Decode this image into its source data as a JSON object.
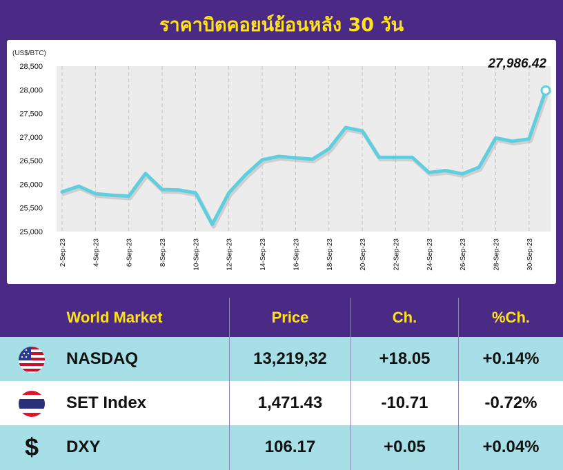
{
  "title": "ราคาบิตคอยน์ย้อนหลัง 30 วัน",
  "chart_data": {
    "type": "line",
    "unit_label": "(US$/BTC)",
    "ylim": [
      25000,
      28500
    ],
    "yticks": [
      "25,000",
      "25,500",
      "26,000",
      "26,500",
      "27,000",
      "27,500",
      "28,000",
      "28,500"
    ],
    "x": [
      "2-Sep-23",
      "3-Sep-23",
      "4-Sep-23",
      "5-Sep-23",
      "6-Sep-23",
      "7-Sep-23",
      "8-Sep-23",
      "9-Sep-23",
      "10-Sep-23",
      "11-Sep-23",
      "12-Sep-23",
      "13-Sep-23",
      "14-Sep-23",
      "15-Sep-23",
      "16-Sep-23",
      "17-Sep-23",
      "18-Sep-23",
      "19-Sep-23",
      "20-Sep-23",
      "21-Sep-23",
      "22-Sep-23",
      "23-Sep-23",
      "24-Sep-23",
      "25-Sep-23",
      "26-Sep-23",
      "27-Sep-23",
      "28-Sep-23",
      "29-Sep-23",
      "30-Sep-23",
      "1-Oct-23"
    ],
    "xtick_labels": [
      "2-Sep-23",
      "4-Sep-23",
      "6-Sep-23",
      "8-Sep-23",
      "10-Sep-23",
      "12-Sep-23",
      "14-Sep-23",
      "16-Sep-23",
      "18-Sep-23",
      "20-Sep-23",
      "22-Sep-23",
      "24-Sep-23",
      "26-Sep-23",
      "28-Sep-23",
      "30-Sep-23"
    ],
    "values": [
      25840,
      25960,
      25800,
      25770,
      25750,
      26230,
      25890,
      25880,
      25820,
      25150,
      25820,
      26200,
      26520,
      26590,
      26560,
      26530,
      26750,
      27200,
      27130,
      26570,
      26570,
      26570,
      26250,
      26290,
      26220,
      26360,
      26980,
      26910,
      26960,
      27986.42
    ],
    "last_label": "27,986.42",
    "grid": "vertical",
    "colors": {
      "line": "#5fcfdf",
      "plot_bg": "#ececec"
    }
  },
  "table": {
    "headers": [
      "World Market",
      "Price",
      "Ch.",
      "%Ch."
    ],
    "rows": [
      {
        "icon": "us-flag-icon",
        "name": "NASDAQ",
        "price": "13,219,32",
        "ch": "+18.05",
        "pct": "+0.14%",
        "bg": "#a7dfe7"
      },
      {
        "icon": "thai-flag-icon",
        "name": "SET Index",
        "price": "1,471.43",
        "ch": "-10.71",
        "pct": "-0.72%",
        "bg": "#ffffff"
      },
      {
        "icon": "dollar-icon",
        "icon_glyph": "$",
        "name": "DXY",
        "price": "106.17",
        "ch": "+0.05",
        "pct": "+0.04%",
        "bg": "#a7dfe7"
      }
    ]
  }
}
